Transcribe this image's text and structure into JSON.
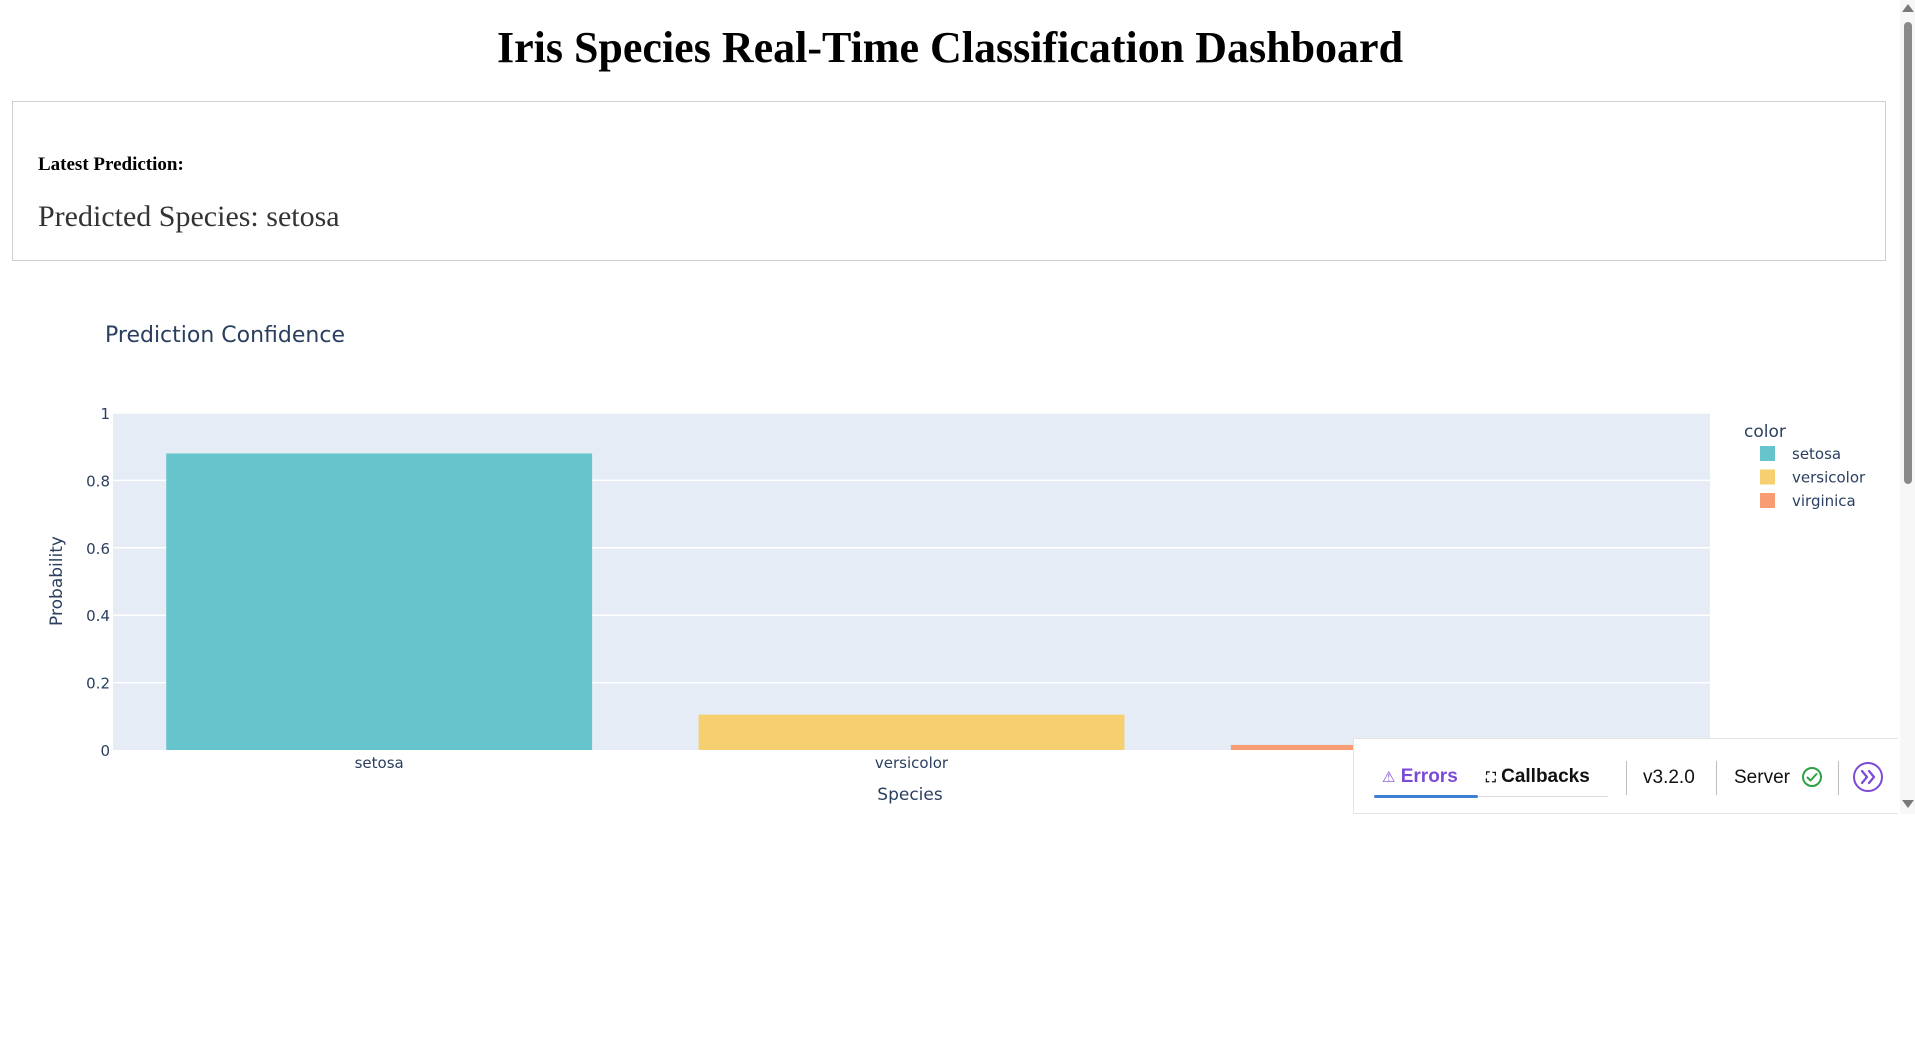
{
  "header": {
    "title": "Iris Species Real-Time Classification Dashboard"
  },
  "prediction": {
    "heading": "Latest Prediction:",
    "value": "Predicted Species: setosa"
  },
  "chart_data": {
    "type": "bar",
    "title": "Prediction Confidence",
    "xlabel": "Species",
    "ylabel": "Probability",
    "categories": [
      "setosa",
      "versicolor",
      "virginica"
    ],
    "values": [
      0.88,
      0.105,
      0.015
    ],
    "colors": [
      "#66c4cc",
      "#f6cf71",
      "#f89c74"
    ],
    "ylim": [
      0,
      1
    ],
    "yticks": [
      0,
      0.2,
      0.4,
      0.6,
      0.8,
      1
    ],
    "ytick_labels": [
      "0",
      "0.2",
      "0.4",
      "0.6",
      "0.8",
      "1"
    ],
    "grid": true,
    "plot_background": "#e5ecf6",
    "legend": {
      "title": "color",
      "placement": "right",
      "entries": [
        "setosa",
        "versicolor",
        "virginica"
      ]
    }
  },
  "devtools": {
    "errors_label": "Errors",
    "callbacks_label": "Callbacks",
    "version": "v3.2.0",
    "server_label": "Server",
    "server_status_icon": "check-circle-icon",
    "accent_color": "#7c4ad6"
  }
}
